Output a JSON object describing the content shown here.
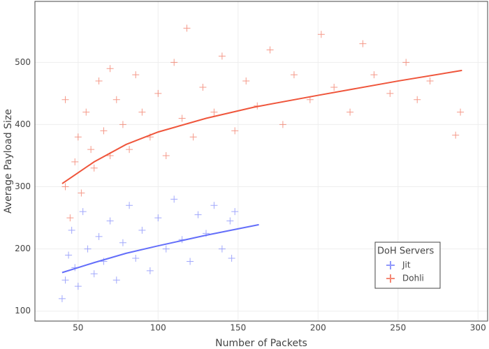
{
  "chart_data": {
    "type": "scatter",
    "x_label": "Number of Packets",
    "y_label": "Average Payload Size",
    "legend_title": "DoH Servers",
    "legend": "lower-right",
    "xlim": [
      23,
      306
    ],
    "ylim": [
      84,
      598
    ],
    "xticks": [
      50,
      100,
      150,
      200,
      250,
      300
    ],
    "yticks": [
      100,
      200,
      300,
      400,
      500
    ],
    "grid": true,
    "series": [
      {
        "name": "Jit",
        "color": "#636efa",
        "x": [
          40,
          42,
          44,
          46,
          48,
          50,
          53,
          56,
          60,
          63,
          66,
          70,
          74,
          78,
          82,
          86,
          90,
          95,
          100,
          105,
          110,
          115,
          120,
          125,
          130,
          135,
          140,
          145,
          148,
          146
        ],
        "values": [
          120,
          150,
          190,
          230,
          170,
          140,
          260,
          200,
          160,
          220,
          180,
          245,
          150,
          210,
          270,
          185,
          230,
          165,
          250,
          200,
          280,
          215,
          180,
          255,
          225,
          270,
          200,
          245,
          260,
          185
        ],
        "trend": {
          "x": [
            40,
            60,
            80,
            100,
            130,
            163
          ],
          "values": [
            162,
            178,
            193,
            205,
            222,
            239
          ]
        }
      },
      {
        "name": "Dohli",
        "color": "#ef553b",
        "x": [
          42,
          45,
          48,
          50,
          52,
          55,
          58,
          60,
          63,
          66,
          70,
          74,
          78,
          82,
          86,
          90,
          95,
          100,
          105,
          110,
          115,
          118,
          122,
          128,
          135,
          140,
          148,
          155,
          162,
          170,
          178,
          185,
          195,
          202,
          210,
          220,
          228,
          235,
          245,
          255,
          262,
          270,
          289,
          286,
          42,
          70
        ],
        "values": [
          300,
          250,
          340,
          380,
          290,
          420,
          360,
          330,
          470,
          390,
          350,
          440,
          400,
          360,
          480,
          420,
          380,
          450,
          350,
          500,
          410,
          555,
          380,
          460,
          420,
          510,
          390,
          470,
          430,
          520,
          400,
          480,
          440,
          545,
          460,
          420,
          530,
          480,
          450,
          500,
          440,
          470,
          420,
          383,
          440,
          490
        ],
        "trend": {
          "x": [
            40,
            60,
            80,
            100,
            130,
            160,
            200,
            250,
            290
          ],
          "values": [
            305,
            340,
            368,
            388,
            410,
            428,
            447,
            470,
            487
          ]
        }
      }
    ]
  }
}
